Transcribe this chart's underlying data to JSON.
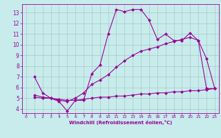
{
  "xlabel": "Windchill (Refroidissement éolien,°C)",
  "bg_color": "#c8ecec",
  "line_color": "#990099",
  "grid_color": "#9fbfbf",
  "xlim": [
    -0.5,
    23.5
  ],
  "ylim": [
    3.6,
    13.8
  ],
  "xticks": [
    0,
    1,
    2,
    3,
    4,
    5,
    6,
    7,
    8,
    9,
    10,
    11,
    12,
    13,
    14,
    15,
    16,
    17,
    18,
    19,
    20,
    21,
    22,
    23
  ],
  "yticks": [
    4,
    5,
    6,
    7,
    8,
    9,
    10,
    11,
    12,
    13
  ],
  "series1_x": [
    1,
    2,
    3,
    4,
    5,
    6,
    7,
    8,
    9,
    10,
    11,
    12,
    13,
    14,
    15,
    16,
    17,
    18,
    19,
    20,
    21,
    22,
    23
  ],
  "series1_y": [
    7.0,
    5.5,
    5.0,
    4.7,
    3.8,
    4.8,
    4.8,
    7.3,
    8.1,
    11.0,
    13.3,
    13.1,
    13.3,
    13.3,
    12.3,
    10.5,
    11.0,
    10.4,
    10.4,
    11.1,
    10.4,
    8.7,
    5.9
  ],
  "series2_x": [
    1,
    2,
    3,
    4,
    5,
    6,
    7,
    8,
    9,
    10,
    11,
    12,
    13,
    14,
    15,
    16,
    17,
    18,
    19,
    20,
    21,
    22,
    23
  ],
  "series2_y": [
    5.3,
    5.1,
    5.0,
    4.8,
    4.7,
    5.0,
    5.5,
    6.3,
    6.7,
    7.2,
    7.9,
    8.5,
    9.0,
    9.4,
    9.6,
    9.8,
    10.1,
    10.3,
    10.5,
    10.7,
    10.4,
    5.9,
    5.9
  ],
  "series3_x": [
    1,
    2,
    3,
    4,
    5,
    6,
    7,
    8,
    9,
    10,
    11,
    12,
    13,
    14,
    15,
    16,
    17,
    18,
    19,
    20,
    21,
    22,
    23
  ],
  "series3_y": [
    5.1,
    5.0,
    5.0,
    4.9,
    4.8,
    4.8,
    4.9,
    5.0,
    5.1,
    5.1,
    5.2,
    5.2,
    5.3,
    5.4,
    5.4,
    5.5,
    5.5,
    5.6,
    5.6,
    5.7,
    5.7,
    5.8,
    5.9
  ]
}
